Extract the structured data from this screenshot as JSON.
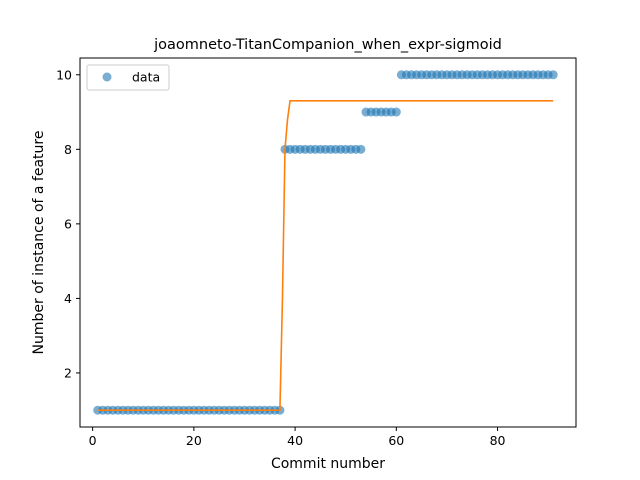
{
  "chart_data": {
    "type": "scatter",
    "title": "joaomneto-TitanCompanion_when_expr-sigmoid",
    "xlabel": "Commit number",
    "ylabel": "Number of instance of a feature",
    "xlim": [
      -2.5,
      95.5
    ],
    "ylim": [
      0.55,
      10.45
    ],
    "xticks": [
      0,
      20,
      40,
      60,
      80
    ],
    "yticks": [
      2,
      4,
      6,
      8,
      10
    ],
    "grid": false,
    "legend": {
      "placement": "top-left",
      "entries": [
        "data"
      ]
    },
    "colors": {
      "data": "#1f77b4",
      "fit": "#ff7f0e"
    },
    "series": [
      {
        "name": "data",
        "kind": "points",
        "segments": [
          {
            "x_from": 1,
            "x_to": 37,
            "y": 1
          },
          {
            "x_from": 38,
            "x_to": 53,
            "y": 8
          },
          {
            "x_from": 54,
            "x_to": 60,
            "y": 9
          },
          {
            "x_from": 61,
            "x_to": 91,
            "y": 10
          }
        ]
      },
      {
        "kind": "line",
        "points": [
          [
            1,
            1.0
          ],
          [
            37,
            1.0
          ],
          [
            37.5,
            4.0
          ],
          [
            38,
            8.0
          ],
          [
            38.5,
            8.8
          ],
          [
            39,
            9.3
          ],
          [
            91,
            9.3
          ]
        ]
      }
    ]
  }
}
